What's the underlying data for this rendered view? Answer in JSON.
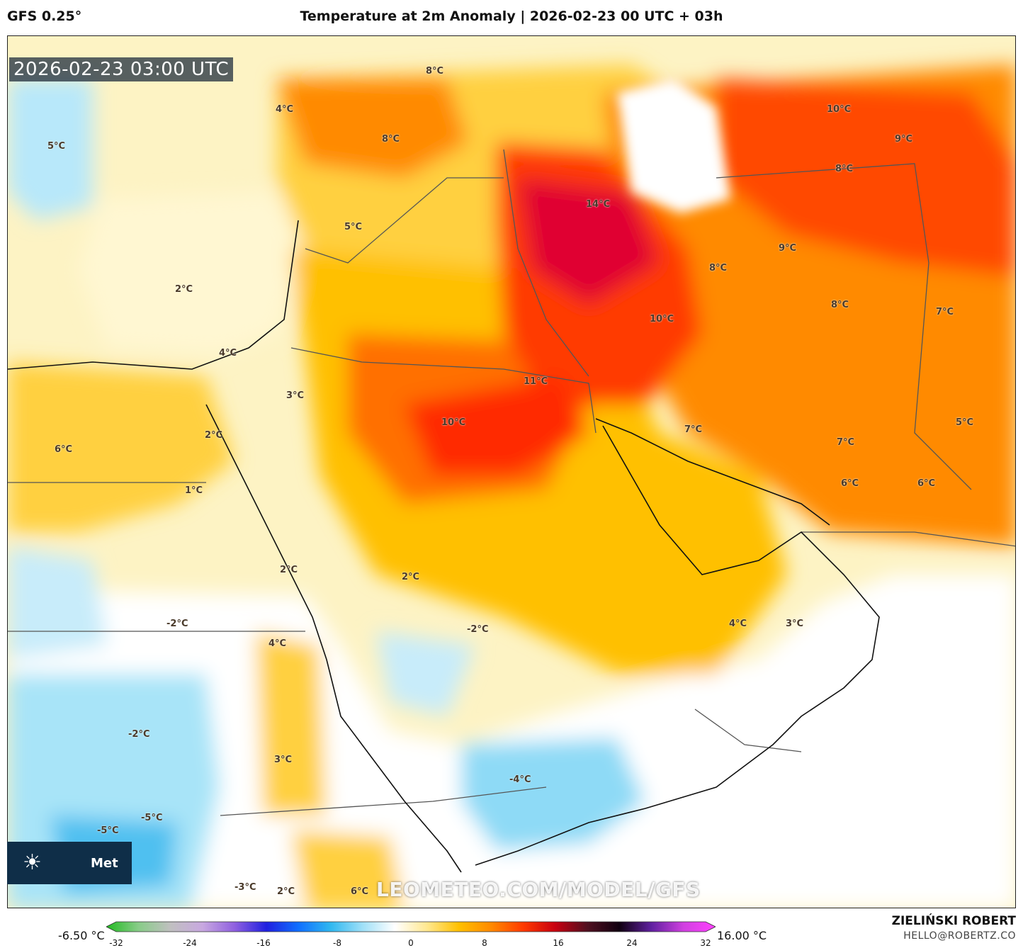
{
  "header": {
    "model": "GFS 0.25°",
    "title": "Temperature at 2m Anomaly | 2026-02-23 00 UTC + 03h"
  },
  "map": {
    "timestamp": "2026-02-23 03:00 UTC",
    "watermark": "LEOMETEO.COM/MODEL/GFS",
    "logo_text": "Met",
    "contour_labels": [
      "8°C",
      "4°C",
      "8°C",
      "5°C",
      "14°C",
      "10°C",
      "9°C",
      "8°C",
      "5°C",
      "2°C",
      "9°C",
      "8°C",
      "8°C",
      "10°C",
      "7°C",
      "4°C",
      "11°C",
      "3°C",
      "10°C",
      "2°C",
      "6°C",
      "7°C",
      "7°C",
      "5°C",
      "1°C",
      "6°C",
      "6°C",
      "2°C",
      "2°C",
      "-2°C",
      "4°C",
      "-2°C",
      "4°C",
      "3°C",
      "-2°C",
      "3°C",
      "-4°C",
      "-5°C",
      "-5°C",
      "-3°C",
      "2°C",
      "6°C"
    ]
  },
  "legend": {
    "min_label": "-6.50 °C",
    "max_label": "16.00 °C",
    "ticks": [
      "-32",
      "-24",
      "-16",
      "-8",
      "0",
      "8",
      "16",
      "24",
      "32"
    ],
    "colors": [
      "#22bb22",
      "#88cc88",
      "#c0c0c0",
      "#c8a8e0",
      "#9060e0",
      "#2020e0",
      "#1070ff",
      "#30b8f0",
      "#a0e0f8",
      "#ffffff",
      "#ffe890",
      "#ffc000",
      "#ff8a00",
      "#ff3a00",
      "#c80010",
      "#501020",
      "#100010",
      "#6020a0",
      "#d040e0",
      "#ff40ff"
    ]
  },
  "credits": {
    "author": "ZIELIŃSKI ROBERT",
    "email": "HELLO@ROBERTZ.CO"
  }
}
